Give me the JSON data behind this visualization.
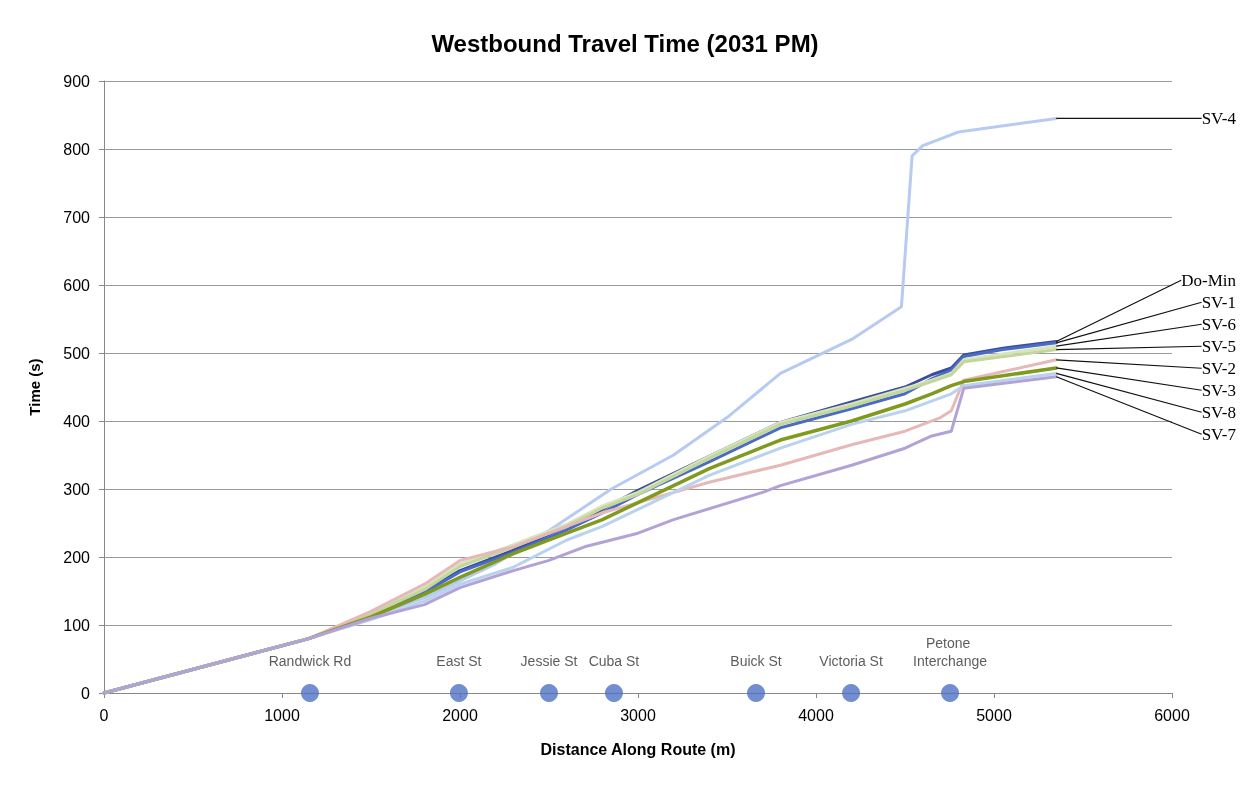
{
  "chart_data": {
    "type": "line",
    "title": "Westbound Travel Time (2031 PM)",
    "xlabel": "Distance Along Route (m)",
    "ylabel": "Time (s)",
    "xlim": [
      0,
      6000
    ],
    "xticks": [
      0,
      1000,
      2000,
      3000,
      4000,
      5000,
      6000
    ],
    "ylim": [
      0,
      900
    ],
    "yticks": [
      0,
      100,
      200,
      300,
      400,
      500,
      600,
      700,
      800,
      900
    ],
    "grid": "y",
    "legend": false,
    "marker": "none",
    "line_style": "solid",
    "series": [
      {
        "name": "SV-4",
        "color": "#b7cbf2",
        "x": [
          0,
          1150,
          1800,
          2000,
          2200,
          2450,
          2650,
          2850,
          3200,
          3500,
          3800,
          4200,
          4480,
          4540,
          4600,
          4700,
          4800,
          5350
        ],
        "values": [
          0,
          80,
          140,
          165,
          190,
          230,
          265,
          300,
          350,
          405,
          470,
          520,
          568,
          790,
          805,
          815,
          825,
          845
        ]
      },
      {
        "name": "Do-Min",
        "color": "#3a4f9c",
        "x": [
          0,
          1150,
          1500,
          1800,
          2000,
          2300,
          2600,
          2800,
          3000,
          3400,
          3800,
          4200,
          4500,
          4650,
          4760,
          4830,
          5050,
          5350
        ],
        "values": [
          0,
          80,
          115,
          150,
          180,
          210,
          245,
          270,
          298,
          348,
          398,
          428,
          450,
          468,
          478,
          497,
          507,
          517
        ]
      },
      {
        "name": "SV-1",
        "color": "#4a6cc4",
        "x": [
          0,
          1150,
          1500,
          1800,
          2000,
          2300,
          2600,
          2800,
          3000,
          3400,
          3800,
          4200,
          4500,
          4650,
          4760,
          4830,
          5050,
          5350
        ],
        "values": [
          0,
          80,
          113,
          148,
          178,
          207,
          240,
          265,
          292,
          340,
          390,
          418,
          440,
          462,
          475,
          495,
          505,
          515
        ]
      },
      {
        "name": "SV-6",
        "color": "#d7e4bd",
        "x": [
          0,
          1150,
          1500,
          1800,
          2000,
          2300,
          2600,
          2800,
          3000,
          3400,
          3800,
          4200,
          4500,
          4650,
          4760,
          4830,
          5350
        ],
        "values": [
          0,
          80,
          118,
          155,
          190,
          218,
          248,
          275,
          295,
          348,
          398,
          425,
          448,
          460,
          470,
          490,
          510
        ]
      },
      {
        "name": "SV-5",
        "color": "#c3d69b",
        "x": [
          0,
          1150,
          1500,
          1800,
          2000,
          2300,
          2600,
          2800,
          3000,
          3400,
          3800,
          4200,
          4500,
          4650,
          4760,
          4830,
          5350
        ],
        "values": [
          0,
          80,
          116,
          152,
          186,
          215,
          245,
          272,
          292,
          345,
          395,
          422,
          445,
          458,
          468,
          487,
          505
        ]
      },
      {
        "name": "SV-2",
        "color": "#e6b9b8",
        "x": [
          0,
          1150,
          1500,
          1800,
          2000,
          2300,
          2600,
          2800,
          3000,
          3400,
          3800,
          4200,
          4500,
          4700,
          4760,
          4830,
          5350
        ],
        "values": [
          0,
          80,
          120,
          160,
          195,
          215,
          245,
          265,
          280,
          310,
          335,
          365,
          385,
          405,
          415,
          460,
          490
        ]
      },
      {
        "name": "SV-3",
        "color": "#7f9a1e",
        "x": [
          0,
          1150,
          1500,
          1800,
          2000,
          2300,
          2600,
          2800,
          3000,
          3400,
          3800,
          4200,
          4500,
          4650,
          4760,
          4830,
          5350
        ],
        "values": [
          0,
          80,
          112,
          145,
          170,
          205,
          235,
          255,
          280,
          330,
          372,
          400,
          425,
          440,
          452,
          458,
          478
        ]
      },
      {
        "name": "SV-8",
        "color": "#b9d3ee",
        "x": [
          0,
          1150,
          1500,
          1800,
          2000,
          2300,
          2600,
          2800,
          3000,
          3400,
          3800,
          4200,
          4500,
          4760,
          4830,
          5350
        ],
        "values": [
          0,
          80,
          108,
          135,
          160,
          185,
          225,
          245,
          270,
          320,
          360,
          395,
          415,
          440,
          452,
          470
        ]
      },
      {
        "name": "SV-7",
        "color": "#b3a2d6",
        "x": [
          0,
          1150,
          1500,
          1800,
          2000,
          2300,
          2500,
          2700,
          3000,
          3200,
          3700,
          3800,
          4200,
          4500,
          4650,
          4760,
          4830,
          5350
        ],
        "values": [
          0,
          80,
          110,
          130,
          155,
          180,
          195,
          215,
          235,
          255,
          295,
          305,
          335,
          360,
          378,
          385,
          448,
          465
        ]
      },
      {
        "type": "scatter",
        "color": "#4f72c4",
        "marker": "circle",
        "x": [
          1157,
          1994,
          2500,
          2865,
          3663,
          4197,
          4753
        ],
        "values": [
          0,
          0,
          0,
          0,
          0,
          0,
          0
        ]
      }
    ],
    "annotations": [
      {
        "text": "Randwick Rd",
        "x": 1157,
        "y": 0
      },
      {
        "text": "East St",
        "x": 1994,
        "y": 0
      },
      {
        "text": "Jessie St",
        "x": 2500,
        "y": 0
      },
      {
        "text": "Cuba St",
        "x": 2865,
        "y": 0
      },
      {
        "text": "Buick St",
        "x": 3663,
        "y": 0
      },
      {
        "text": "Victoria St",
        "x": 4197,
        "y": 0
      },
      {
        "text": "Petone Interchange",
        "x": 4753,
        "y": 0
      }
    ]
  }
}
